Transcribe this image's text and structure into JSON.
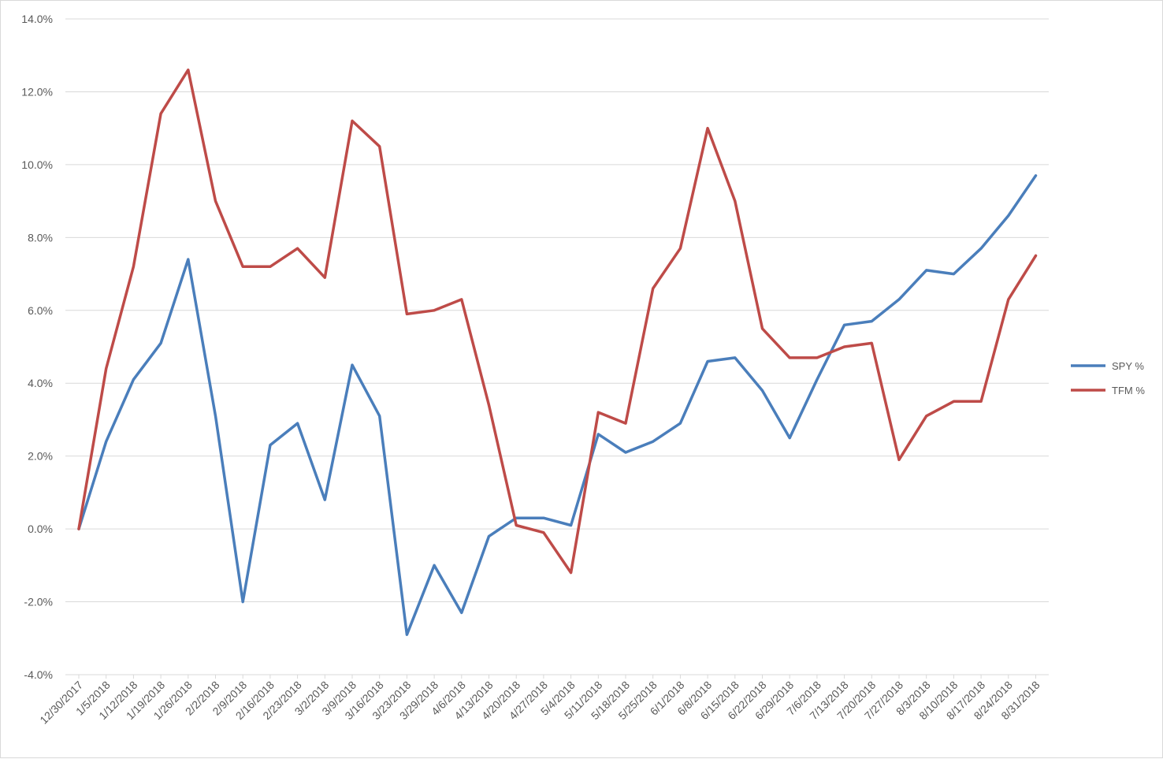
{
  "chart_data": {
    "type": "line",
    "title": "",
    "xlabel": "",
    "ylabel": "",
    "ylim": [
      -0.04,
      0.14
    ],
    "y_tick_step": 0.02,
    "y_ticks": [
      "-4.0%",
      "-2.0%",
      "0.0%",
      "2.0%",
      "4.0%",
      "6.0%",
      "8.0%",
      "10.0%",
      "12.0%",
      "14.0%"
    ],
    "grid": "horizontal",
    "legend_position": "right",
    "categories": [
      "12/30/2017",
      "1/5/2018",
      "1/12/2018",
      "1/19/2018",
      "1/26/2018",
      "2/2/2018",
      "2/9/2018",
      "2/16/2018",
      "2/23/2018",
      "3/2/2018",
      "3/9/2018",
      "3/16/2018",
      "3/23/2018",
      "3/29/2018",
      "4/6/2018",
      "4/13/2018",
      "4/20/2018",
      "4/27/2018",
      "5/4/2018",
      "5/11/2018",
      "5/18/2018",
      "5/25/2018",
      "6/1/2018",
      "6/8/2018",
      "6/15/2018",
      "6/22/2018",
      "6/29/2018",
      "7/6/2018",
      "7/13/2018",
      "7/20/2018",
      "7/27/2018",
      "8/3/2018",
      "8/10/2018",
      "8/17/2018",
      "8/24/2018",
      "8/31/2018"
    ],
    "series": [
      {
        "name": "SPY %",
        "color": "#4a7ebb",
        "values": [
          0.0,
          0.024,
          0.041,
          0.051,
          0.074,
          0.031,
          -0.02,
          0.023,
          0.029,
          0.008,
          0.045,
          0.031,
          -0.029,
          -0.01,
          -0.023,
          -0.002,
          0.003,
          0.003,
          0.001,
          0.026,
          0.021,
          0.024,
          0.029,
          0.046,
          0.047,
          0.038,
          0.025,
          0.041,
          0.056,
          0.057,
          0.063,
          0.071,
          0.07,
          0.077,
          0.086,
          0.097
        ]
      },
      {
        "name": "TFM %",
        "color": "#be4b48",
        "values": [
          0.0,
          0.044,
          0.072,
          0.114,
          0.126,
          0.09,
          0.072,
          0.072,
          0.077,
          0.069,
          0.112,
          0.105,
          0.059,
          0.06,
          0.063,
          0.034,
          0.001,
          -0.001,
          -0.012,
          0.032,
          0.029,
          0.066,
          0.077,
          0.11,
          0.09,
          0.055,
          0.047,
          0.047,
          0.05,
          0.051,
          0.019,
          0.031,
          0.035,
          0.035,
          0.063,
          0.075
        ]
      }
    ]
  }
}
